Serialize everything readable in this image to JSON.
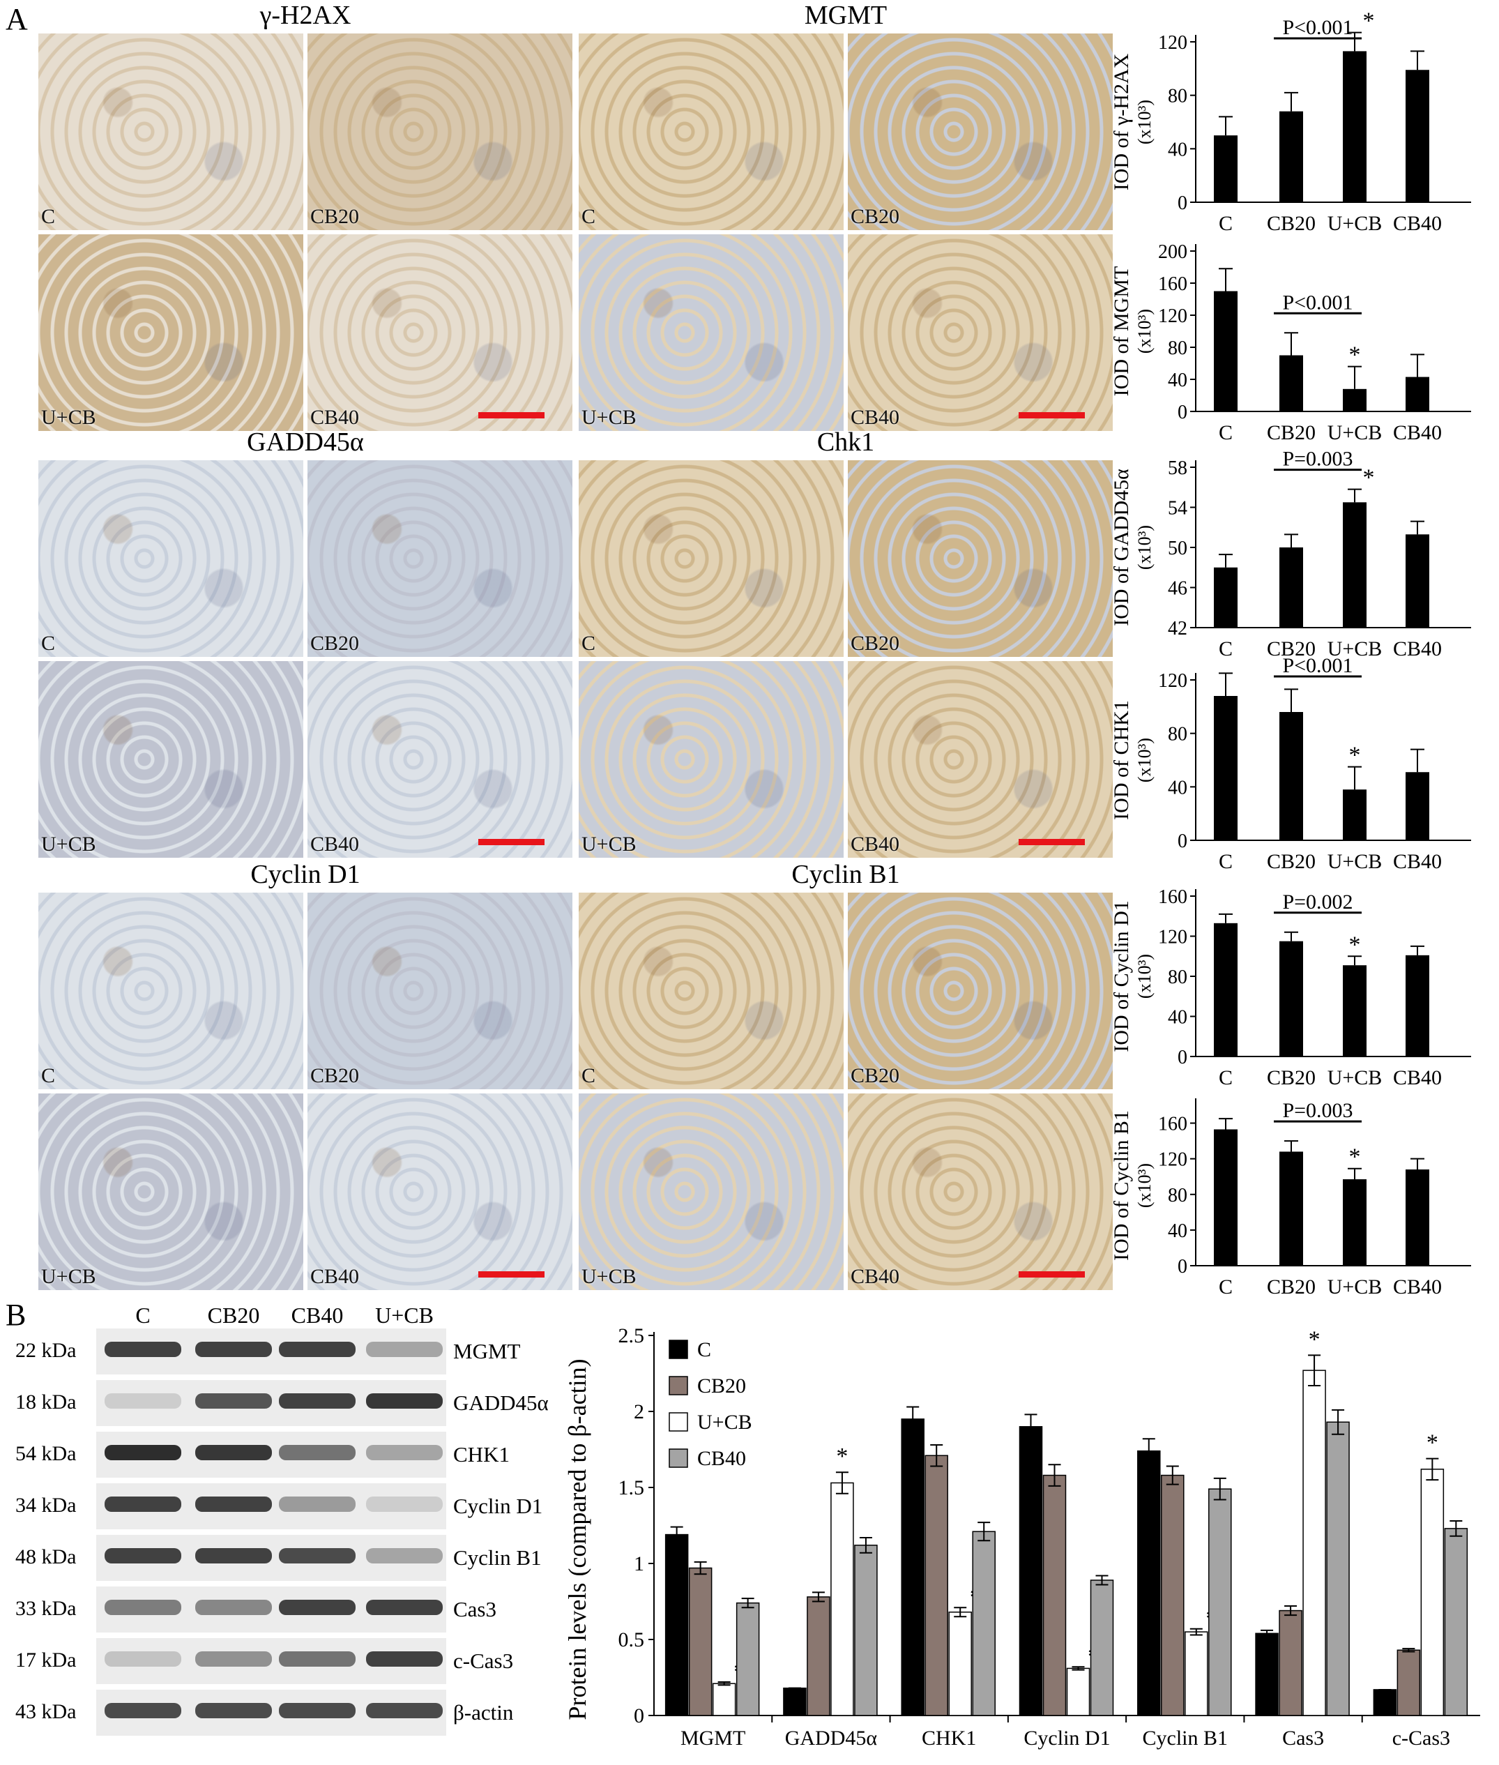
{
  "panel_labels": {
    "a": "A",
    "b": "B"
  },
  "micrographs": [
    {
      "title": "γ-H2AX",
      "tile_labels": [
        "C",
        "CB20",
        "U+CB",
        "CB40"
      ],
      "palette": "brown"
    },
    {
      "title": "MGMT",
      "tile_labels": [
        "C",
        "CB20",
        "U+CB",
        "CB40"
      ],
      "palette": "mixed"
    },
    {
      "title": "GADD45α",
      "tile_labels": [
        "C",
        "CB20",
        "U+CB",
        "CB40"
      ],
      "palette": "blue"
    },
    {
      "title": "Chk1",
      "tile_labels": [
        "C",
        "CB20",
        "U+CB",
        "CB40"
      ],
      "palette": "mixed"
    },
    {
      "title": "Cyclin D1",
      "tile_labels": [
        "C",
        "CB20",
        "U+CB",
        "CB40"
      ],
      "palette": "blue"
    },
    {
      "title": "Cyclin B1",
      "tile_labels": [
        "C",
        "CB20",
        "U+CB",
        "CB40"
      ],
      "palette": "mixed"
    }
  ],
  "chart_data": [
    {
      "type": "bar",
      "ylabel": "IOD of γ-H2AX",
      "yunit": "(x10³)",
      "categories": [
        "C",
        "CB20",
        "U+CB",
        "CB40"
      ],
      "values": [
        50,
        68,
        113,
        99
      ],
      "errors": [
        14,
        14,
        14,
        14
      ],
      "ylim": [
        0,
        120
      ],
      "yticks": [
        0,
        40,
        80,
        120
      ],
      "annotation": "P<0.001",
      "bracket": [
        1,
        2
      ],
      "star_index": 2
    },
    {
      "type": "bar",
      "ylabel": "IOD of MGMT",
      "yunit": "(x10³)",
      "categories": [
        "C",
        "CB20",
        "U+CB",
        "CB40"
      ],
      "values": [
        150,
        70,
        28,
        43
      ],
      "errors": [
        28,
        28,
        28,
        28
      ],
      "ylim": [
        0,
        200
      ],
      "yticks": [
        0,
        40,
        80,
        120,
        160,
        200
      ],
      "annotation": "P<0.001",
      "bracket": [
        1,
        2
      ],
      "star_index": 2
    },
    {
      "type": "bar",
      "ylabel": "IOD of GADD45α",
      "yunit": "(x10³)",
      "categories": [
        "C",
        "CB20",
        "U+CB",
        "CB40"
      ],
      "values": [
        48,
        50,
        54.5,
        51.3
      ],
      "errors": [
        1.3,
        1.3,
        1.3,
        1.3
      ],
      "ylim": [
        42,
        58
      ],
      "yticks": [
        42,
        46,
        50,
        54,
        58
      ],
      "annotation": "P=0.003",
      "bracket": [
        1,
        2
      ],
      "star_index": 2
    },
    {
      "type": "bar",
      "ylabel": "IOD of CHK1",
      "yunit": "(x10³)",
      "categories": [
        "C",
        "CB20",
        "U+CB",
        "CB40"
      ],
      "values": [
        108,
        96,
        38,
        51
      ],
      "errors": [
        17,
        17,
        17,
        17
      ],
      "ylim": [
        0,
        120
      ],
      "yticks": [
        0,
        40,
        80,
        120
      ],
      "annotation": "P<0.001",
      "bracket": [
        1,
        2
      ],
      "star_index": 2
    },
    {
      "type": "bar",
      "ylabel": "IOD of Cyclin D1",
      "yunit": "(x10³)",
      "categories": [
        "C",
        "CB20",
        "U+CB",
        "CB40"
      ],
      "values": [
        133,
        115,
        91,
        101
      ],
      "errors": [
        9,
        9,
        9,
        9
      ],
      "ylim": [
        0,
        160
      ],
      "yticks": [
        0,
        40,
        80,
        120,
        160
      ],
      "annotation": "P=0.002",
      "bracket": [
        1,
        2
      ],
      "star_index": 2
    },
    {
      "type": "bar",
      "ylabel": "IOD of Cyclin B1",
      "yunit": "(x10³)",
      "categories": [
        "C",
        "CB20",
        "U+CB",
        "CB40"
      ],
      "values": [
        153,
        128,
        97,
        108
      ],
      "errors": [
        12,
        12,
        12,
        12
      ],
      "ylim": [
        0,
        180
      ],
      "yticks": [
        0,
        40,
        80,
        120,
        160
      ],
      "annotation": "P=0.003",
      "bracket": [
        1,
        2
      ],
      "star_index": 2
    },
    {
      "type": "bar",
      "ylabel": "Protein levels (compared to β-actin)",
      "categories": [
        "MGMT",
        "GADD45α",
        "CHK1",
        "Cyclin D1",
        "Cyclin B1",
        "Cas3",
        "c-Cas3"
      ],
      "ylim": [
        0,
        2.5
      ],
      "yticks": [
        "0",
        "0.5",
        "1",
        "1.5",
        "2",
        "2.5"
      ],
      "legend_position": "top-left",
      "series": [
        {
          "name": "C",
          "color": "#000000",
          "values": [
            1.19,
            0.18,
            1.95,
            1.9,
            1.74,
            0.54,
            0.17
          ],
          "errors": [
            0.05,
            0.0,
            0.08,
            0.08,
            0.08,
            0.02,
            0.0
          ]
        },
        {
          "name": "CB20",
          "color": "#8a7770",
          "values": [
            0.97,
            0.78,
            1.71,
            1.58,
            1.58,
            0.69,
            0.43
          ],
          "errors": [
            0.04,
            0.03,
            0.07,
            0.07,
            0.06,
            0.03,
            0.01
          ]
        },
        {
          "name": "U+CB",
          "color": "#ffffff",
          "values": [
            0.21,
            1.53,
            0.68,
            0.31,
            0.55,
            2.27,
            1.62
          ],
          "errors": [
            0.01,
            0.07,
            0.03,
            0.01,
            0.02,
            0.1,
            0.07
          ]
        },
        {
          "name": "CB40",
          "color": "#a4a4a4",
          "values": [
            0.74,
            1.12,
            1.21,
            0.89,
            1.49,
            1.93,
            1.23
          ],
          "errors": [
            0.03,
            0.05,
            0.06,
            0.03,
            0.07,
            0.08,
            0.05
          ]
        }
      ],
      "star_series": "U+CB"
    }
  ],
  "western": {
    "lanes": [
      "C",
      "CB20",
      "CB40",
      "U+CB"
    ],
    "rows": [
      {
        "kda": "22 kDa",
        "protein": "MGMT",
        "intensity": [
          0.85,
          0.85,
          0.85,
          0.35
        ]
      },
      {
        "kda": "18 kDa",
        "protein": "GADD45α",
        "intensity": [
          0.15,
          0.75,
          0.85,
          0.9
        ]
      },
      {
        "kda": "54 kDa",
        "protein": "CHK1",
        "intensity": [
          0.95,
          0.9,
          0.6,
          0.35
        ]
      },
      {
        "kda": "34 kDa",
        "protein": "Cyclin D1",
        "intensity": [
          0.85,
          0.85,
          0.4,
          0.15
        ]
      },
      {
        "kda": "48 kDa",
        "protein": "Cyclin B1",
        "intensity": [
          0.85,
          0.85,
          0.8,
          0.35
        ]
      },
      {
        "kda": "33 kDa",
        "protein": "Cas3",
        "intensity": [
          0.55,
          0.5,
          0.85,
          0.85
        ]
      },
      {
        "kda": "17 kDa",
        "protein": "c-Cas3",
        "intensity": [
          0.2,
          0.45,
          0.6,
          0.85
        ]
      },
      {
        "kda": "43 kDa",
        "protein": "β-actin",
        "intensity": [
          0.8,
          0.8,
          0.8,
          0.8
        ]
      }
    ]
  },
  "colors": {
    "scalebar": "#e8141a",
    "bar": "#000000"
  }
}
